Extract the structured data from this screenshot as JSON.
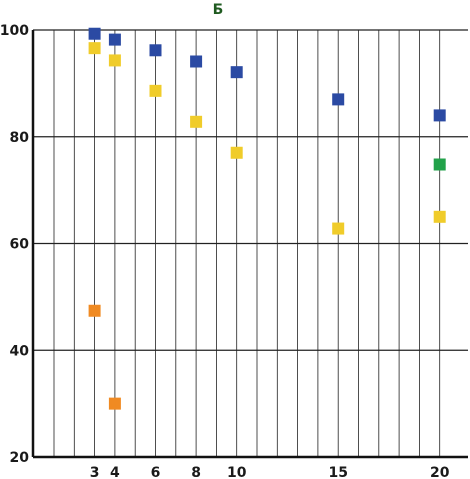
{
  "chart_data": {
    "type": "scatter",
    "title": "Б",
    "xlabel": "",
    "ylabel": "",
    "xlim": [
      0,
      20
    ],
    "ylim": [
      20,
      100
    ],
    "x_ticks": [
      3,
      4,
      6,
      8,
      10,
      15,
      20
    ],
    "y_ticks": [
      20,
      40,
      60,
      80,
      100
    ],
    "grid": true,
    "series": [
      {
        "color": "#2b4aa3",
        "points": [
          [
            3,
            99.3
          ],
          [
            4,
            98.2
          ],
          [
            6,
            96.2
          ],
          [
            8,
            94.1
          ],
          [
            10,
            92.1
          ],
          [
            15,
            87.0
          ],
          [
            20,
            84.0
          ]
        ]
      },
      {
        "color": "#f0cc2a",
        "points": [
          [
            3,
            96.6
          ],
          [
            4,
            94.3
          ],
          [
            6,
            88.6
          ],
          [
            8,
            82.8
          ],
          [
            10,
            77.0
          ],
          [
            15,
            62.8
          ],
          [
            20,
            65.0
          ]
        ]
      },
      {
        "color": "#f08a22",
        "points": [
          [
            3,
            47.4
          ],
          [
            4,
            30.0
          ]
        ]
      },
      {
        "color": "#22a24a",
        "points": [
          [
            20,
            74.8
          ]
        ]
      }
    ]
  }
}
